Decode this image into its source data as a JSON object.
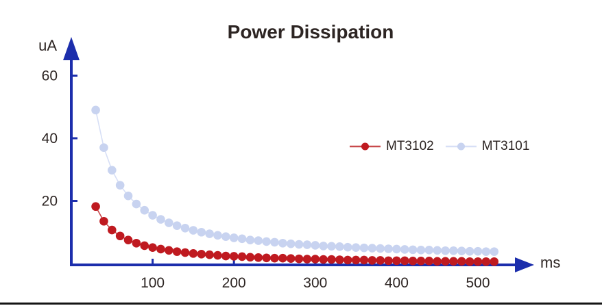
{
  "page": {
    "background": "#ffffff",
    "bottom_rule_color": "#141414"
  },
  "chart_data": {
    "type": "line",
    "title": "Power Dissipation",
    "xlabel": "ms",
    "ylabel": "uA",
    "grid": false,
    "legend_position": "center-right",
    "xlim": [
      0,
      565
    ],
    "ylim": [
      0,
      72
    ],
    "x_ticks": [
      100,
      200,
      300,
      400,
      500
    ],
    "y_ticks": [
      20,
      40,
      60
    ],
    "axis_color": "#1c2eac",
    "text_color": "#2d2523",
    "x": [
      30,
      40,
      50,
      60,
      70,
      80,
      90,
      100,
      110,
      120,
      130,
      140,
      150,
      160,
      170,
      180,
      190,
      200,
      210,
      220,
      230,
      240,
      250,
      260,
      270,
      280,
      290,
      300,
      310,
      320,
      330,
      340,
      350,
      360,
      370,
      380,
      390,
      400,
      410,
      420,
      430,
      440,
      450,
      460,
      470,
      480,
      490,
      500,
      510,
      520
    ],
    "series": [
      {
        "name": "MT3102",
        "marker_color": "#bf1a20",
        "line_color": "#c84a4d",
        "values": [
          18.2,
          13.5,
          10.7,
          8.8,
          7.5,
          6.5,
          5.7,
          5.1,
          4.6,
          4.2,
          3.8,
          3.5,
          3.2,
          3.0,
          2.8,
          2.6,
          2.4,
          2.3,
          2.2,
          2.0,
          1.9,
          1.8,
          1.7,
          1.7,
          1.6,
          1.5,
          1.4,
          1.4,
          1.3,
          1.3,
          1.2,
          1.1,
          1.1,
          1.1,
          1.0,
          1.0,
          0.9,
          0.9,
          0.9,
          0.8,
          0.8,
          0.8,
          0.7,
          0.7,
          0.7,
          0.7,
          0.6,
          0.6,
          0.6,
          0.6
        ]
      },
      {
        "name": "MT3101",
        "marker_color": "#c8d3f0",
        "line_color": "#d7dff6",
        "values": [
          49.0,
          37.0,
          29.8,
          25.0,
          21.6,
          19.0,
          17.0,
          15.4,
          14.1,
          13.0,
          12.1,
          11.3,
          10.6,
          10.0,
          9.5,
          9.0,
          8.6,
          8.2,
          7.9,
          7.5,
          7.3,
          7.0,
          6.8,
          6.5,
          6.3,
          6.1,
          6.0,
          5.8,
          5.6,
          5.5,
          5.4,
          5.2,
          5.1,
          5.0,
          4.9,
          4.8,
          4.7,
          4.6,
          4.5,
          4.4,
          4.3,
          4.3,
          4.2,
          4.1,
          4.1,
          4.0,
          3.9,
          3.9,
          3.8,
          3.8
        ]
      }
    ]
  }
}
